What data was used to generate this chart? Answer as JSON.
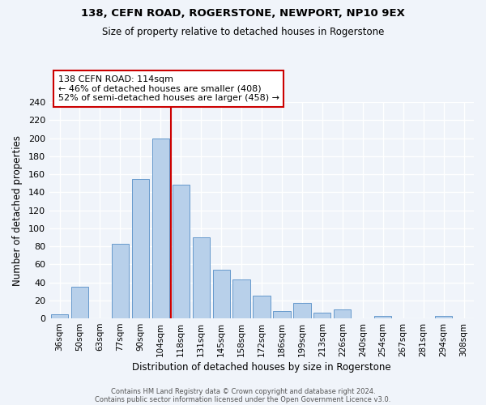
{
  "title1": "138, CEFN ROAD, ROGERSTONE, NEWPORT, NP10 9EX",
  "title2": "Size of property relative to detached houses in Rogerstone",
  "xlabel": "Distribution of detached houses by size in Rogerstone",
  "ylabel": "Number of detached properties",
  "bin_labels": [
    "36sqm",
    "50sqm",
    "63sqm",
    "77sqm",
    "90sqm",
    "104sqm",
    "118sqm",
    "131sqm",
    "145sqm",
    "158sqm",
    "172sqm",
    "186sqm",
    "199sqm",
    "213sqm",
    "226sqm",
    "240sqm",
    "254sqm",
    "267sqm",
    "281sqm",
    "294sqm",
    "308sqm"
  ],
  "bar_values": [
    5,
    35,
    0,
    83,
    155,
    200,
    148,
    90,
    54,
    43,
    25,
    8,
    17,
    6,
    10,
    0,
    3,
    0,
    0,
    3,
    0
  ],
  "bar_color": "#b8d0ea",
  "bar_edge_color": "#6699cc",
  "ylim": [
    0,
    240
  ],
  "yticks": [
    0,
    20,
    40,
    60,
    80,
    100,
    120,
    140,
    160,
    180,
    200,
    220,
    240
  ],
  "vline_x_index": 6.0,
  "vline_color": "#cc0000",
  "annotation_title": "138 CEFN ROAD: 114sqm",
  "annotation_line1": "← 46% of detached houses are smaller (408)",
  "annotation_line2": "52% of semi-detached houses are larger (458) →",
  "annotation_box_edge_color": "#cc0000",
  "footer1": "Contains HM Land Registry data © Crown copyright and database right 2024.",
  "footer2": "Contains public sector information licensed under the Open Government Licence v3.0.",
  "background_color": "#f0f4fa",
  "grid_color": "#ffffff",
  "figsize": [
    6.0,
    5.0
  ],
  "dpi": 100
}
